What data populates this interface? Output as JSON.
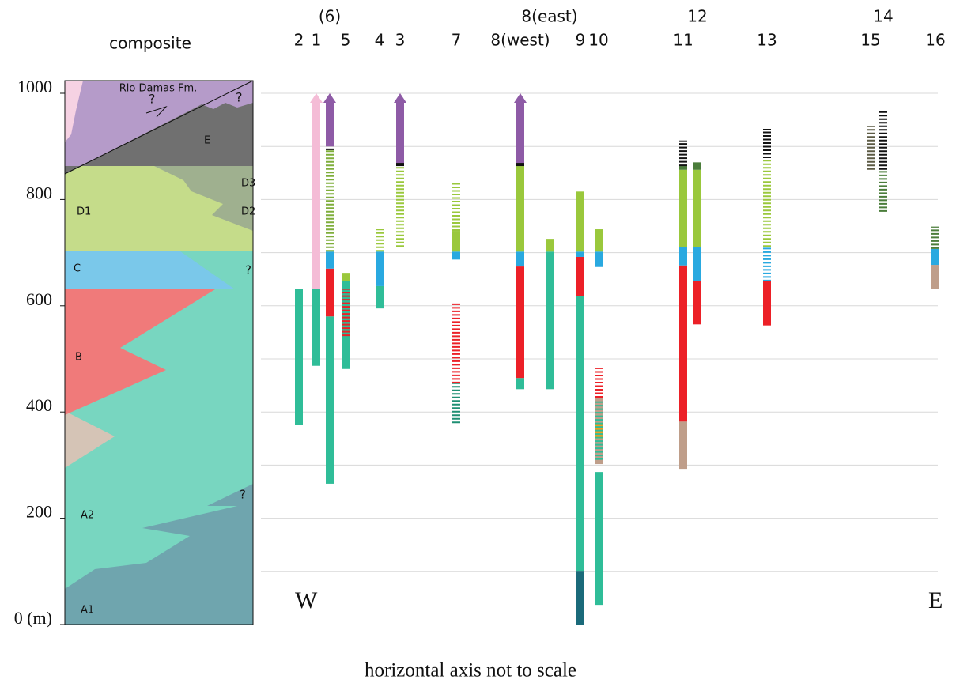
{
  "chart_data": {
    "type": "stratigraphic-columns",
    "title": "composite",
    "ylim": [
      0,
      1000
    ],
    "yticks": [
      {
        "value": 0,
        "label": "0 (m)"
      },
      200,
      400,
      600,
      800,
      1000
    ],
    "grid_values": [
      100,
      200,
      300,
      400,
      500,
      600,
      700,
      800,
      900,
      1000
    ],
    "composite_labels": [
      "Rio Damas Fm.",
      "?",
      "?",
      "E",
      "D3",
      "D2",
      "D1",
      "C",
      "?",
      "B",
      "?",
      "A2",
      "A1"
    ],
    "west_label": "W",
    "east_label": "E",
    "footnote": "horizontal axis not to scale",
    "columns": [
      {
        "label": "2",
        "segments": [
          {
            "from": 375,
            "to": 632,
            "color": "#2fbd98",
            "dashed": false
          }
        ]
      },
      {
        "label": "1",
        "segments": [
          {
            "from": 487,
            "to": 632,
            "color": "#2fbd98",
            "dashed": false
          },
          {
            "from": 632,
            "to": 1000,
            "color": "#f4bcd6",
            "dashed": false,
            "arrow": true
          }
        ]
      },
      {
        "label": "(6)",
        "segments": [
          {
            "from": 265,
            "to": 580,
            "color": "#2fbd98",
            "dashed": false
          },
          {
            "from": 580,
            "to": 670,
            "color": "#ec2027",
            "dashed": false
          },
          {
            "from": 670,
            "to": 702,
            "color": "#29a9e0",
            "dashed": false
          },
          {
            "from": 702,
            "to": 893,
            "color": "#7fae3a",
            "dashed": true
          },
          {
            "from": 893,
            "to": 900,
            "color": "#111111",
            "dashed": true
          },
          {
            "from": 900,
            "to": 1000,
            "color": "#8e5ba6",
            "dashed": false,
            "arrow": true
          }
        ]
      },
      {
        "label": "5",
        "segments": [
          {
            "from": 481,
            "to": 647,
            "color": "#2fbd98",
            "dashed": false
          },
          {
            "from": 543,
            "to": 632,
            "color": "#ec2027",
            "dashed": true
          },
          {
            "from": 647,
            "to": 662,
            "color": "#9ac83c",
            "dashed": false
          }
        ]
      },
      {
        "label": "4",
        "segments": [
          {
            "from": 595,
            "to": 637,
            "color": "#2fbd98",
            "dashed": false
          },
          {
            "from": 637,
            "to": 702,
            "color": "#29a9e0",
            "dashed": false
          },
          {
            "from": 702,
            "to": 744,
            "color": "#9ac83c",
            "dashed": true
          }
        ]
      },
      {
        "label": "3",
        "segments": [
          {
            "from": 711,
            "to": 863,
            "color": "#9ac83c",
            "dashed": true
          },
          {
            "from": 863,
            "to": 869,
            "color": "#111111",
            "dashed": false
          },
          {
            "from": 869,
            "to": 1000,
            "color": "#8e5ba6",
            "dashed": false,
            "arrow": true
          }
        ]
      },
      {
        "label": "7",
        "segments": [
          {
            "from": 379,
            "to": 454,
            "color": "#1f8f73",
            "dashed": true
          },
          {
            "from": 454,
            "to": 607,
            "color": "#ec2027",
            "dashed": true
          },
          {
            "from": 687,
            "to": 702,
            "color": "#29a9e0",
            "dashed": false
          },
          {
            "from": 702,
            "to": 741,
            "color": "#9ac83c",
            "dashed": false
          },
          {
            "from": 741,
            "to": 833,
            "color": "#9ac83c",
            "dashed": true
          }
        ]
      },
      {
        "label": "8(west)",
        "segments": [
          {
            "from": 443,
            "to": 464,
            "color": "#2fbd98",
            "dashed": false
          },
          {
            "from": 464,
            "to": 674,
            "color": "#ec2027",
            "dashed": false
          },
          {
            "from": 674,
            "to": 702,
            "color": "#29a9e0",
            "dashed": false
          },
          {
            "from": 702,
            "to": 863,
            "color": "#9ac83c",
            "dashed": false
          },
          {
            "from": 863,
            "to": 869,
            "color": "#111111",
            "dashed": false
          },
          {
            "from": 869,
            "to": 1000,
            "color": "#8e5ba6",
            "dashed": false,
            "arrow": true
          }
        ]
      },
      {
        "label": "8(east)",
        "segments": [
          {
            "from": 443,
            "to": 702,
            "color": "#2fbd98",
            "dashed": false
          },
          {
            "from": 702,
            "to": 726,
            "color": "#9ac83c",
            "dashed": false
          }
        ]
      },
      {
        "label": "9",
        "segments": [
          {
            "from": 0,
            "to": 101,
            "color": "#1a6a7a",
            "dashed": false
          },
          {
            "from": 101,
            "to": 618,
            "color": "#2fbd98",
            "dashed": false
          },
          {
            "from": 618,
            "to": 692,
            "color": "#ec2027",
            "dashed": false
          },
          {
            "from": 692,
            "to": 702,
            "color": "#29a9e0",
            "dashed": false
          },
          {
            "from": 702,
            "to": 815,
            "color": "#9ac83c",
            "dashed": false
          }
        ]
      },
      {
        "label": "10",
        "segments": [
          {
            "from": 37,
            "to": 287,
            "color": "#2fbd98",
            "dashed": false
          },
          {
            "from": 302,
            "to": 350,
            "color": "#bf9e8a",
            "dashed": false
          },
          {
            "from": 350,
            "to": 380,
            "color": "#f39c1f",
            "dashed": false
          },
          {
            "from": 380,
            "to": 427,
            "color": "#bf9e8a",
            "dashed": false
          },
          {
            "from": 310,
            "to": 420,
            "color": "#2fbd98",
            "dashed": true
          },
          {
            "from": 427,
            "to": 482,
            "color": "#ec2027",
            "dashed": true
          },
          {
            "from": 673,
            "to": 702,
            "color": "#29a9e0",
            "dashed": false
          },
          {
            "from": 702,
            "to": 744,
            "color": "#9ac83c",
            "dashed": false
          }
        ]
      },
      {
        "label": "11",
        "segments": [
          {
            "from": 293,
            "to": 382,
            "color": "#bf9e8a",
            "dashed": false
          },
          {
            "from": 382,
            "to": 676,
            "color": "#ec2027",
            "dashed": false
          },
          {
            "from": 676,
            "to": 711,
            "color": "#29a9e0",
            "dashed": false
          },
          {
            "from": 711,
            "to": 856,
            "color": "#9ac83c",
            "dashed": false
          },
          {
            "from": 856,
            "to": 863,
            "color": "#4b7d3b",
            "dashed": false
          },
          {
            "from": 863,
            "to": 911,
            "color": "#111111",
            "dashed": true
          }
        ]
      },
      {
        "label": "12",
        "segments": [
          {
            "from": 565,
            "to": 646,
            "color": "#ec2027",
            "dashed": false
          },
          {
            "from": 646,
            "to": 711,
            "color": "#29a9e0",
            "dashed": false
          },
          {
            "from": 711,
            "to": 856,
            "color": "#9ac83c",
            "dashed": false
          },
          {
            "from": 856,
            "to": 870,
            "color": "#4b7d3b",
            "dashed": false
          }
        ]
      },
      {
        "label": "13",
        "segments": [
          {
            "from": 563,
            "to": 646,
            "color": "#ec2027",
            "dashed": false
          },
          {
            "from": 646,
            "to": 711,
            "color": "#29a9e0",
            "dashed": true
          },
          {
            "from": 711,
            "to": 878,
            "color": "#9ac83c",
            "dashed": true
          },
          {
            "from": 878,
            "to": 933,
            "color": "#111111",
            "dashed": true
          }
        ]
      },
      {
        "label": "15",
        "segments": [
          {
            "from": 856,
            "to": 938,
            "color": "#5c5a44",
            "dashed": true
          }
        ]
      },
      {
        "label": "14",
        "segments": [
          {
            "from": 777,
            "to": 856,
            "color": "#4b7d3b",
            "dashed": true
          },
          {
            "from": 856,
            "to": 967,
            "color": "#111111",
            "dashed": true
          }
        ]
      },
      {
        "label": "16",
        "segments": [
          {
            "from": 632,
            "to": 677,
            "color": "#bf9e8a",
            "dashed": false
          },
          {
            "from": 677,
            "to": 707,
            "color": "#29a9e0",
            "dashed": false
          },
          {
            "from": 707,
            "to": 749,
            "color": "#4b7d3b",
            "dashed": true
          }
        ]
      }
    ]
  }
}
